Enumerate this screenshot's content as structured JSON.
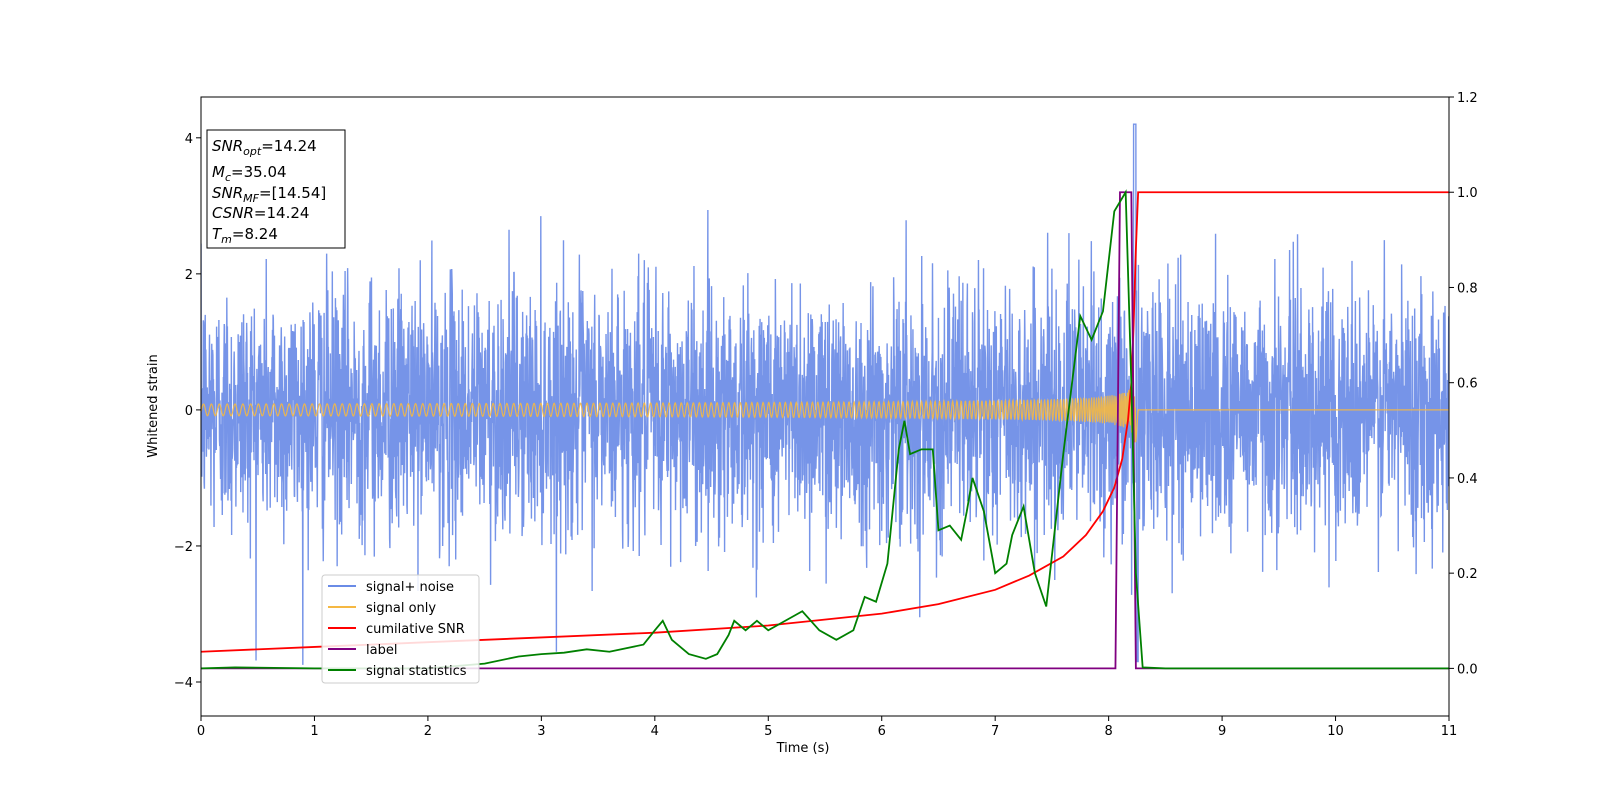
{
  "chart_data": {
    "type": "line",
    "xlabel": "Time (s)",
    "ylabel": "Whitened strain",
    "xlim": [
      0,
      11
    ],
    "ylim_left": [
      -4.5,
      4.6
    ],
    "ylim_right": [
      -0.1,
      1.2
    ],
    "x_ticks": [
      "0",
      "1",
      "2",
      "3",
      "4",
      "5",
      "6",
      "7",
      "8",
      "9",
      "10",
      "11"
    ],
    "y_left_ticks": [
      "4",
      "2",
      "0",
      "−2",
      "−4"
    ],
    "y_left_tick_values": [
      4,
      2,
      0,
      -2,
      -4
    ],
    "y_right_ticks": [
      "1.2",
      "1.0",
      "0.8",
      "0.6",
      "0.4",
      "0.2",
      "0.0"
    ],
    "y_right_tick_values": [
      1.2,
      1.0,
      0.8,
      0.6,
      0.4,
      0.2,
      0.0
    ],
    "grid": false,
    "legend_position": "lower-left",
    "info_box": {
      "snr_opt": {
        "sym": "SNR",
        "sub": "opt",
        "value": "=14.24"
      },
      "mc": {
        "sym": "M",
        "sub": "c",
        "value": "=35.04"
      },
      "snr_mf": {
        "sym": "SNR",
        "sub": "MF",
        "value": "=[14.54]"
      },
      "csnr": {
        "sym": "CSNR",
        "value": "=14.24"
      },
      "tm": {
        "sym": "T",
        "sub": "m",
        "value": "=8.24"
      }
    },
    "series": [
      {
        "key": "noise",
        "name": "signal+ noise",
        "color": "#6a8be6",
        "axis": "left",
        "description_kind": "noise",
        "amplitude_std": 0.9,
        "t_merge": 8.24
      },
      {
        "key": "signal",
        "name": "signal only",
        "color": "#f5b843",
        "axis": "left",
        "description_kind": "chirp",
        "t_merge": 8.24,
        "peak": 1.0
      },
      {
        "key": "csnr",
        "name": "cumilative SNR",
        "color": "#ff0000",
        "axis": "right",
        "x": [
          0,
          1,
          2,
          3,
          4,
          5,
          6,
          6.5,
          7,
          7.3,
          7.6,
          7.8,
          7.95,
          8.05,
          8.12,
          8.17,
          8.2,
          8.22,
          8.24,
          8.26,
          11
        ],
        "y": [
          0.035,
          0.045,
          0.055,
          0.065,
          0.075,
          0.09,
          0.115,
          0.135,
          0.165,
          0.195,
          0.235,
          0.28,
          0.33,
          0.38,
          0.44,
          0.52,
          0.6,
          0.72,
          0.88,
          1.0,
          1.0
        ]
      },
      {
        "key": "label",
        "name": "label",
        "color": "#800080",
        "axis": "right",
        "x": [
          0,
          8.06,
          8.1,
          8.2,
          8.24,
          11
        ],
        "y": [
          0,
          0,
          1.0,
          1.0,
          0,
          0
        ]
      },
      {
        "key": "stats",
        "name": "signal statistics",
        "color": "#008000",
        "axis": "right",
        "x": [
          0,
          0.3,
          1,
          2,
          2.5,
          2.8,
          3,
          3.2,
          3.4,
          3.6,
          3.9,
          4.0,
          4.07,
          4.15,
          4.3,
          4.45,
          4.55,
          4.65,
          4.7,
          4.8,
          4.9,
          5.0,
          5.15,
          5.3,
          5.45,
          5.6,
          5.75,
          5.85,
          5.95,
          6.05,
          6.15,
          6.2,
          6.25,
          6.35,
          6.45,
          6.5,
          6.6,
          6.7,
          6.75,
          6.8,
          6.9,
          7.0,
          7.1,
          7.15,
          7.25,
          7.35,
          7.45,
          7.6,
          7.75,
          7.85,
          7.95,
          8.05,
          8.15,
          8.2,
          8.24,
          8.3,
          8.5,
          11
        ],
        "y": [
          0.0,
          0.002,
          0.0,
          0.0,
          0.01,
          0.025,
          0.03,
          0.033,
          0.04,
          0.035,
          0.05,
          0.08,
          0.1,
          0.06,
          0.03,
          0.02,
          0.03,
          0.07,
          0.1,
          0.08,
          0.1,
          0.08,
          0.1,
          0.12,
          0.08,
          0.06,
          0.08,
          0.15,
          0.14,
          0.22,
          0.46,
          0.52,
          0.45,
          0.46,
          0.46,
          0.29,
          0.3,
          0.27,
          0.33,
          0.4,
          0.33,
          0.2,
          0.22,
          0.28,
          0.34,
          0.2,
          0.13,
          0.45,
          0.74,
          0.69,
          0.75,
          0.96,
          1.0,
          0.6,
          0.2,
          0.002,
          0.0,
          0.0
        ]
      }
    ]
  }
}
